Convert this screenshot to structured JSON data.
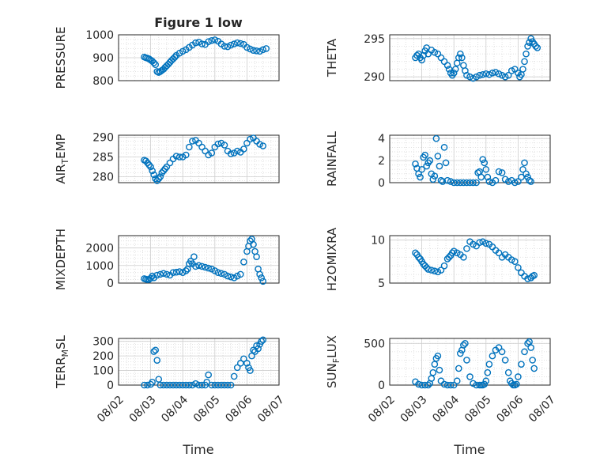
{
  "figure": {
    "title": "Figure 1 low",
    "xlabel": "Time",
    "colors": {
      "marker": "#0072BD",
      "axis": "#262626",
      "grid": "#d9d9d9"
    }
  },
  "chart_data": [
    {
      "type": "scatter",
      "ylabel": "PRESSURE",
      "xlim": [
        0,
        5
      ],
      "ylim": [
        800,
        1000
      ],
      "yticks": [
        800,
        900,
        1000
      ],
      "xticks": [
        "08/02",
        "08/03",
        "08/04",
        "08/05",
        "08/06",
        "08/07"
      ],
      "x": [
        0.8,
        0.85,
        0.9,
        0.95,
        1.0,
        1.05,
        1.1,
        1.15,
        1.2,
        1.25,
        1.3,
        1.35,
        1.4,
        1.45,
        1.5,
        1.55,
        1.6,
        1.65,
        1.7,
        1.75,
        1.8,
        1.9,
        2.0,
        2.1,
        2.2,
        2.3,
        2.4,
        2.5,
        2.6,
        2.7,
        2.8,
        2.9,
        3.0,
        3.1,
        3.2,
        3.3,
        3.4,
        3.5,
        3.6,
        3.7,
        3.8,
        3.9,
        4.0,
        4.1,
        4.2,
        4.3,
        4.4,
        4.5,
        4.6
      ],
      "y": [
        903,
        900,
        898,
        895,
        890,
        885,
        878,
        870,
        840,
        836,
        840,
        845,
        850,
        858,
        865,
        872,
        880,
        888,
        895,
        902,
        910,
        920,
        928,
        935,
        945,
        955,
        965,
        968,
        960,
        958,
        970,
        975,
        978,
        972,
        960,
        950,
        948,
        955,
        960,
        965,
        962,
        958,
        945,
        938,
        932,
        930,
        928,
        935,
        940
      ]
    },
    {
      "type": "scatter",
      "ylabel": "THETA",
      "xlim": [
        0,
        5
      ],
      "ylim": [
        289.5,
        295.5
      ],
      "yticks": [
        290,
        295
      ],
      "xticks": [
        "08/02",
        "08/03",
        "08/04",
        "08/05",
        "08/06",
        "08/07"
      ],
      "x": [
        0.8,
        0.85,
        0.9,
        0.95,
        1.0,
        1.05,
        1.1,
        1.15,
        1.2,
        1.3,
        1.4,
        1.5,
        1.6,
        1.7,
        1.8,
        1.85,
        1.9,
        1.95,
        2.0,
        2.05,
        2.1,
        2.15,
        2.2,
        2.25,
        2.3,
        2.35,
        2.4,
        2.5,
        2.6,
        2.7,
        2.8,
        2.9,
        3.0,
        3.1,
        3.2,
        3.3,
        3.4,
        3.5,
        3.6,
        3.7,
        3.8,
        3.9,
        4.0,
        4.05,
        4.1,
        4.15,
        4.2,
        4.25,
        4.3,
        4.35,
        4.4,
        4.45,
        4.5,
        4.55,
        4.6
      ],
      "y": [
        292.5,
        292.8,
        293.0,
        292.5,
        292.2,
        292.8,
        293.4,
        293.8,
        293.0,
        293.5,
        293.2,
        293.0,
        292.5,
        292.0,
        291.5,
        291.0,
        290.5,
        290.2,
        290.5,
        291.0,
        291.8,
        292.5,
        293.0,
        292.5,
        291.5,
        290.8,
        290.2,
        290.0,
        289.8,
        290.0,
        290.2,
        290.3,
        290.4,
        290.3,
        290.5,
        290.6,
        290.4,
        290.2,
        290.0,
        290.2,
        290.8,
        291.0,
        290.5,
        290.0,
        290.3,
        291.0,
        292.0,
        293.0,
        294.0,
        294.5,
        295.0,
        294.6,
        294.3,
        294.0,
        293.8
      ]
    },
    {
      "type": "scatter",
      "ylabel": "AIR_TEMP",
      "xlim": [
        0,
        5
      ],
      "ylim": [
        278.5,
        290.5
      ],
      "yticks": [
        280,
        285,
        290
      ],
      "xticks": [
        "08/02",
        "08/03",
        "08/04",
        "08/05",
        "08/06",
        "08/07"
      ],
      "x": [
        0.8,
        0.85,
        0.9,
        0.95,
        1.0,
        1.05,
        1.1,
        1.15,
        1.2,
        1.25,
        1.3,
        1.35,
        1.4,
        1.45,
        1.5,
        1.6,
        1.7,
        1.8,
        1.9,
        2.0,
        2.1,
        2.2,
        2.3,
        2.4,
        2.5,
        2.6,
        2.7,
        2.8,
        2.9,
        3.0,
        3.1,
        3.2,
        3.3,
        3.4,
        3.5,
        3.6,
        3.7,
        3.8,
        3.9,
        4.0,
        4.1,
        4.2,
        4.3,
        4.4,
        4.5
      ],
      "y": [
        284.2,
        284.0,
        283.5,
        283.0,
        282.5,
        281.5,
        280.5,
        279.5,
        279.0,
        279.5,
        280.0,
        281.0,
        281.5,
        282.0,
        282.5,
        283.5,
        284.5,
        285.2,
        285.0,
        285.0,
        285.5,
        287.5,
        289.0,
        289.2,
        288.5,
        287.5,
        286.5,
        285.5,
        286.0,
        287.5,
        288.3,
        288.5,
        288.0,
        286.5,
        285.8,
        286.0,
        286.5,
        286.2,
        287.0,
        288.5,
        289.5,
        289.8,
        289.0,
        288.2,
        287.8
      ]
    },
    {
      "type": "scatter",
      "ylabel": "RAINFALL",
      "xlim": [
        0,
        5
      ],
      "ylim": [
        0,
        4.3
      ],
      "yticks": [
        0,
        2,
        4
      ],
      "xticks": [
        "08/02",
        "08/03",
        "08/04",
        "08/05",
        "08/06",
        "08/07"
      ],
      "x": [
        0.8,
        0.85,
        0.9,
        0.95,
        1.0,
        1.05,
        1.1,
        1.15,
        1.2,
        1.25,
        1.3,
        1.35,
        1.4,
        1.45,
        1.5,
        1.55,
        1.6,
        1.65,
        1.7,
        1.75,
        1.8,
        1.9,
        2.0,
        2.1,
        2.2,
        2.3,
        2.4,
        2.5,
        2.6,
        2.7,
        2.75,
        2.8,
        2.85,
        2.9,
        2.95,
        3.0,
        3.05,
        3.1,
        3.2,
        3.3,
        3.4,
        3.5,
        3.6,
        3.7,
        3.8,
        3.9,
        4.0,
        4.1,
        4.15,
        4.2,
        4.25,
        4.3,
        4.35,
        4.4
      ],
      "y": [
        1.7,
        1.3,
        0.8,
        0.5,
        1.2,
        2.3,
        2.5,
        1.5,
        1.8,
        2.0,
        0.8,
        0.3,
        0.6,
        4.0,
        2.4,
        1.5,
        0.2,
        0.1,
        3.2,
        1.8,
        0.2,
        0.1,
        0.0,
        0.0,
        0.0,
        0.0,
        0.0,
        0.0,
        0.0,
        0.0,
        0.9,
        1.0,
        0.5,
        2.1,
        1.8,
        1.2,
        0.5,
        0.1,
        0.0,
        0.2,
        1.0,
        0.9,
        0.3,
        0.1,
        0.2,
        0.0,
        0.1,
        0.5,
        1.2,
        1.8,
        0.8,
        0.5,
        0.2,
        0.1
      ]
    },
    {
      "type": "scatter",
      "ylabel": "MIXDEPTH",
      "xlim": [
        0,
        5
      ],
      "ylim": [
        0,
        2700
      ],
      "yticks": [
        0,
        1000,
        2000
      ],
      "xticks": [
        "08/02",
        "08/03",
        "08/04",
        "08/05",
        "08/06",
        "08/07"
      ],
      "x": [
        0.8,
        0.85,
        0.9,
        0.95,
        1.0,
        1.05,
        1.1,
        1.2,
        1.3,
        1.4,
        1.5,
        1.6,
        1.7,
        1.8,
        1.9,
        2.0,
        2.1,
        2.15,
        2.2,
        2.25,
        2.3,
        2.35,
        2.4,
        2.5,
        2.6,
        2.7,
        2.8,
        2.9,
        3.0,
        3.1,
        3.2,
        3.3,
        3.4,
        3.5,
        3.6,
        3.7,
        3.8,
        3.9,
        4.0,
        4.05,
        4.1,
        4.15,
        4.2,
        4.25,
        4.3,
        4.35,
        4.4,
        4.45,
        4.5
      ],
      "y": [
        250,
        220,
        200,
        210,
        280,
        400,
        300,
        450,
        500,
        550,
        500,
        450,
        600,
        620,
        650,
        600,
        700,
        800,
        1100,
        1250,
        1100,
        1500,
        950,
        1000,
        950,
        900,
        850,
        800,
        700,
        600,
        550,
        500,
        400,
        350,
        300,
        400,
        500,
        1200,
        1800,
        2100,
        2400,
        2500,
        2200,
        1800,
        1500,
        800,
        500,
        300,
        100
      ]
    },
    {
      "type": "scatter",
      "ylabel": "H2OMIXRA",
      "xlim": [
        0,
        5
      ],
      "ylim": [
        5,
        10.5
      ],
      "yticks": [
        5,
        10
      ],
      "xticks": [
        "08/02",
        "08/03",
        "08/04",
        "08/05",
        "08/06",
        "08/07"
      ],
      "x": [
        0.8,
        0.85,
        0.9,
        0.95,
        1.0,
        1.05,
        1.1,
        1.15,
        1.2,
        1.3,
        1.4,
        1.5,
        1.6,
        1.7,
        1.8,
        1.85,
        1.9,
        1.95,
        2.0,
        2.1,
        2.2,
        2.3,
        2.4,
        2.5,
        2.6,
        2.7,
        2.8,
        2.9,
        3.0,
        3.1,
        3.2,
        3.3,
        3.4,
        3.5,
        3.6,
        3.7,
        3.8,
        3.9,
        4.0,
        4.1,
        4.2,
        4.3,
        4.4,
        4.45,
        4.5
      ],
      "y": [
        8.5,
        8.3,
        8.0,
        7.8,
        7.5,
        7.2,
        7.0,
        6.8,
        6.6,
        6.5,
        6.4,
        6.3,
        6.5,
        7.0,
        7.8,
        8.0,
        8.2,
        8.5,
        8.7,
        8.5,
        8.3,
        8.0,
        9.0,
        9.8,
        9.5,
        9.3,
        9.7,
        9.8,
        9.6,
        9.5,
        9.2,
        8.8,
        8.5,
        8.0,
        8.3,
        8.0,
        7.7,
        7.5,
        6.8,
        6.2,
        5.8,
        5.5,
        5.6,
        5.8,
        5.9
      ]
    },
    {
      "type": "scatter",
      "ylabel": "TERR_MSL",
      "xlim": [
        0,
        5
      ],
      "ylim": [
        0,
        320
      ],
      "yticks": [
        0,
        100,
        200,
        300
      ],
      "xticks": [
        "08/02",
        "08/03",
        "08/04",
        "08/05",
        "08/06",
        "08/07"
      ],
      "x": [
        0.8,
        0.9,
        1.0,
        1.05,
        1.1,
        1.15,
        1.2,
        1.25,
        1.3,
        1.4,
        1.5,
        1.6,
        1.7,
        1.8,
        1.9,
        2.0,
        2.1,
        2.2,
        2.3,
        2.4,
        2.5,
        2.6,
        2.7,
        2.75,
        2.8,
        2.9,
        3.0,
        3.1,
        3.2,
        3.3,
        3.4,
        3.5,
        3.6,
        3.7,
        3.8,
        3.9,
        4.0,
        4.05,
        4.1,
        4.15,
        4.2,
        4.25,
        4.3,
        4.35,
        4.4,
        4.45,
        4.5
      ],
      "y": [
        0,
        0,
        5,
        20,
        230,
        240,
        170,
        40,
        0,
        0,
        0,
        0,
        0,
        0,
        0,
        0,
        0,
        0,
        0,
        10,
        0,
        0,
        0,
        20,
        70,
        0,
        0,
        0,
        0,
        0,
        0,
        0,
        60,
        120,
        150,
        180,
        150,
        120,
        100,
        200,
        240,
        230,
        270,
        250,
        280,
        300,
        310
      ]
    },
    {
      "type": "scatter",
      "ylabel": "SUN_FLUX",
      "xlim": [
        0,
        5
      ],
      "ylim": [
        0,
        560
      ],
      "yticks": [
        0,
        500
      ],
      "xticks": [
        "08/02",
        "08/03",
        "08/04",
        "08/05",
        "08/06",
        "08/07"
      ],
      "x": [
        0.8,
        0.9,
        1.0,
        1.1,
        1.2,
        1.25,
        1.3,
        1.35,
        1.4,
        1.45,
        1.5,
        1.55,
        1.6,
        1.7,
        1.8,
        1.9,
        2.0,
        2.1,
        2.15,
        2.2,
        2.25,
        2.3,
        2.35,
        2.4,
        2.5,
        2.6,
        2.7,
        2.8,
        2.85,
        2.9,
        2.95,
        3.0,
        3.05,
        3.1,
        3.2,
        3.3,
        3.4,
        3.5,
        3.6,
        3.7,
        3.75,
        3.8,
        3.85,
        3.9,
        3.95,
        4.0,
        4.1,
        4.2,
        4.3,
        4.35,
        4.4,
        4.45,
        4.5
      ],
      "y": [
        40,
        10,
        0,
        0,
        0,
        20,
        80,
        150,
        250,
        320,
        350,
        180,
        50,
        10,
        0,
        0,
        0,
        50,
        200,
        380,
        420,
        480,
        500,
        300,
        100,
        20,
        0,
        0,
        0,
        0,
        10,
        50,
        150,
        250,
        350,
        420,
        450,
        400,
        300,
        150,
        50,
        20,
        0,
        0,
        10,
        100,
        250,
        400,
        500,
        520,
        450,
        300,
        200
      ]
    }
  ]
}
